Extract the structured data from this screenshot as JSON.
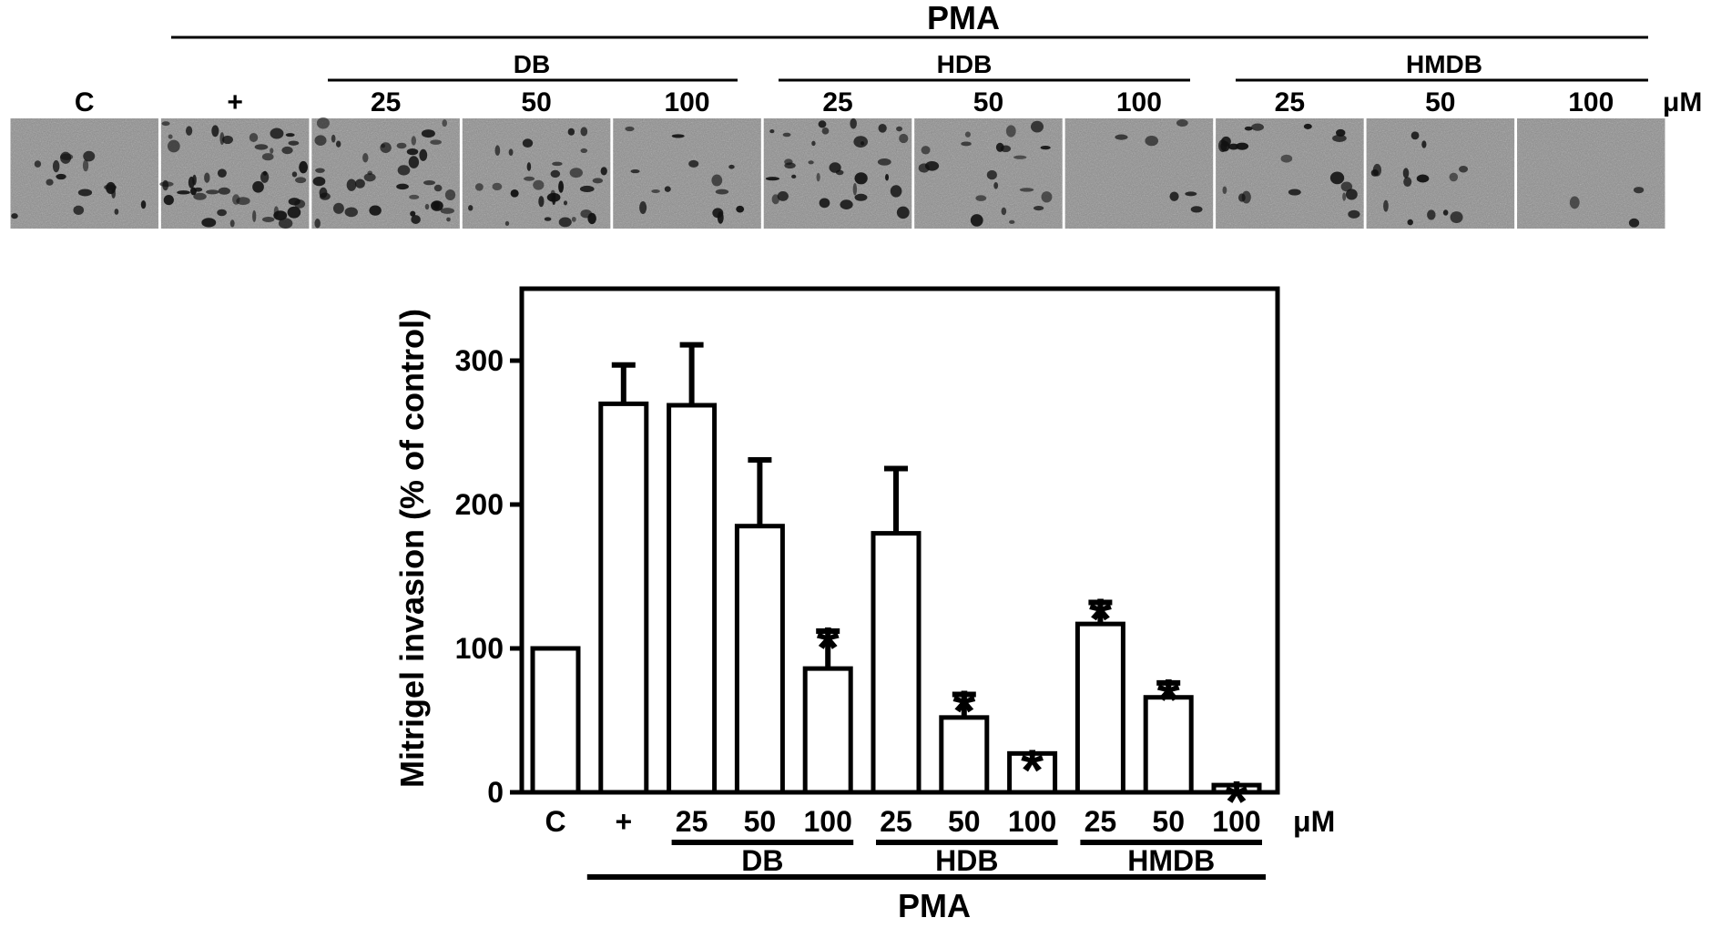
{
  "micrograph_panel": {
    "treatment_label": "PMA",
    "groups": [
      "DB",
      "HDB",
      "HMDB"
    ],
    "column_labels": [
      "C",
      "+",
      "25",
      "50",
      "100",
      "25",
      "50",
      "100",
      "25",
      "50",
      "100"
    ],
    "unit": "μM",
    "cell_density": [
      0.18,
      0.52,
      0.45,
      0.35,
      0.14,
      0.33,
      0.22,
      0.07,
      0.22,
      0.16,
      0.03
    ]
  },
  "chart_data": {
    "type": "bar",
    "ylabel": "Mitrigel invasion (% of control)",
    "xlabel": "",
    "ylim": [
      0,
      350
    ],
    "yticks": [
      0,
      100,
      200,
      300
    ],
    "categories": [
      "C",
      "+",
      "25",
      "50",
      "100",
      "25",
      "50",
      "100",
      "25",
      "50",
      "100"
    ],
    "values": [
      100,
      270,
      269,
      185,
      86,
      180,
      52,
      27,
      117,
      66,
      5
    ],
    "errors": [
      0,
      27,
      42,
      46,
      26,
      45,
      16,
      0,
      15,
      10,
      0
    ],
    "significant": [
      false,
      false,
      false,
      false,
      true,
      false,
      true,
      true,
      true,
      true,
      true
    ],
    "significance_marker": "*",
    "unit": "μM",
    "groups": [
      {
        "name": "DB",
        "from": 2,
        "to": 4
      },
      {
        "name": "HDB",
        "from": 5,
        "to": 7
      },
      {
        "name": "HMDB",
        "from": 8,
        "to": 10
      }
    ],
    "treatment_label": "PMA",
    "treatment_from": 1,
    "treatment_to": 10,
    "grid": false,
    "legend": "none"
  }
}
